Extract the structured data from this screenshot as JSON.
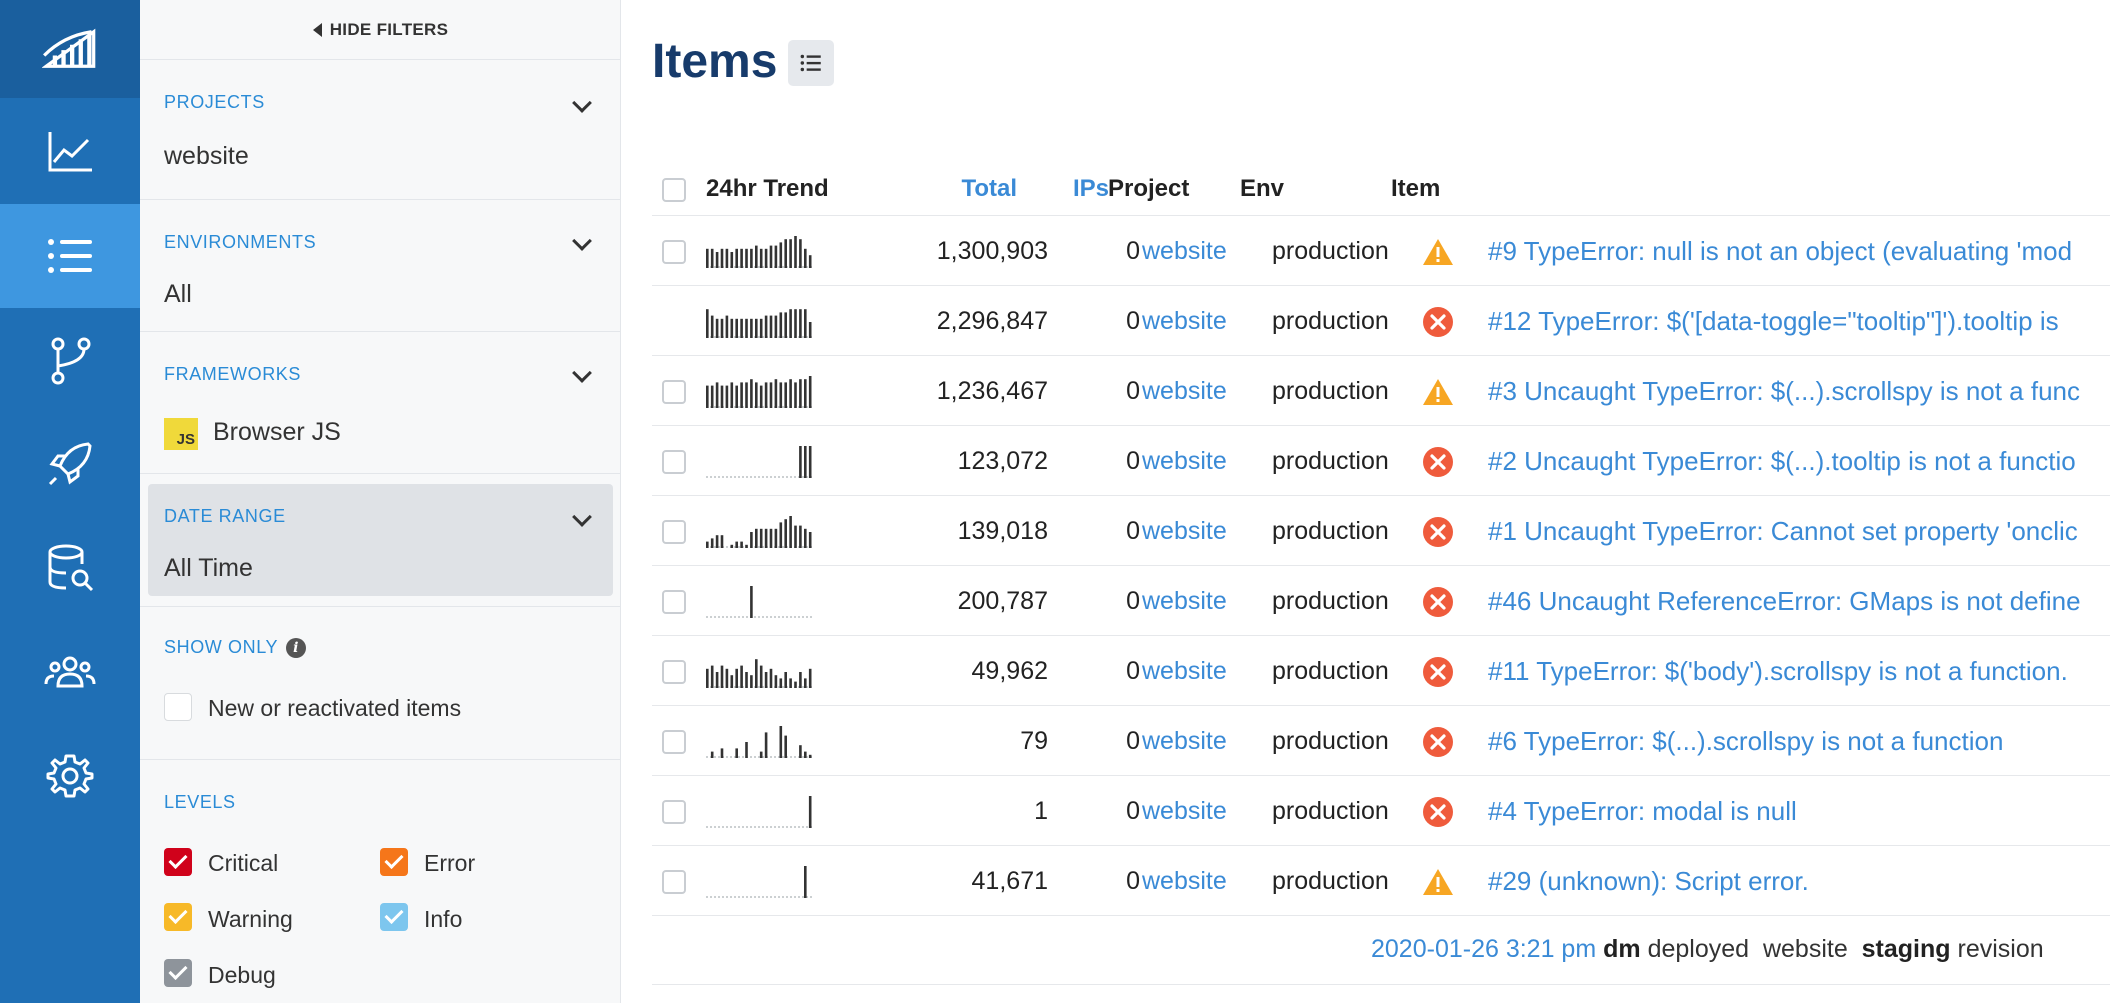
{
  "filters": {
    "hide_label": "HIDE FILTERS",
    "projects": {
      "label": "PROJECTS",
      "value": "website"
    },
    "environments": {
      "label": "ENVIRONMENTS",
      "value": "All"
    },
    "frameworks": {
      "label": "FRAMEWORKS",
      "badge": "JS",
      "value": "Browser JS"
    },
    "date_range": {
      "label": "DATE RANGE",
      "value": "All Time"
    },
    "show_only": {
      "label": "SHOW ONLY",
      "info": "i",
      "option": "New or reactivated items"
    },
    "levels": {
      "label": "LEVELS",
      "items": [
        {
          "label": "Critical",
          "color": "#d0021b"
        },
        {
          "label": "Error",
          "color": "#f5761a"
        },
        {
          "label": "Warning",
          "color": "#f7b928"
        },
        {
          "label": "Info",
          "color": "#7dc6ee"
        },
        {
          "label": "Debug",
          "color": "#8e949b"
        }
      ]
    }
  },
  "main": {
    "title": "Items",
    "columns": {
      "trend": "24hr Trend",
      "total": "Total",
      "ips": "IPs",
      "project": "Project",
      "env": "Env",
      "item": "Item"
    },
    "rows": [
      {
        "total": "1,300,903",
        "ips": "0",
        "project": "website",
        "env": "production",
        "level": "warning",
        "item": "#9 TypeError: null is not an object (evaluating 'mod",
        "trend": [
          6,
          6,
          5,
          6,
          6,
          5,
          6,
          6,
          6,
          6,
          7,
          6,
          6,
          7,
          7,
          8,
          9,
          9,
          10,
          9,
          6,
          4
        ]
      },
      {
        "total": "2,296,847",
        "ips": "0",
        "project": "website",
        "env": "production",
        "level": "error",
        "item": "#12 TypeError: $('[data-toggle=\"tooltip\"]').tooltip is",
        "trend": [
          9,
          7,
          6,
          6,
          7,
          6,
          6,
          6,
          6,
          6,
          6,
          6,
          7,
          7,
          7,
          8,
          8,
          9,
          9,
          9,
          9,
          5
        ]
      },
      {
        "total": "1,236,467",
        "ips": "0",
        "project": "website",
        "env": "production",
        "level": "warning",
        "item": "#3 Uncaught TypeError: $(...).scrollspy is not a func",
        "trend": [
          7,
          7,
          8,
          7,
          7,
          8,
          7,
          8,
          8,
          9,
          8,
          7,
          8,
          8,
          9,
          8,
          8,
          9,
          8,
          9,
          9,
          10
        ]
      },
      {
        "total": "123,072",
        "ips": "0",
        "project": "website",
        "env": "production",
        "level": "error",
        "item": "#2 Uncaught TypeError: $(...).tooltip is not a functio",
        "trend": [
          0,
          0,
          0,
          0,
          0,
          0,
          0,
          0,
          0,
          0,
          0,
          0,
          0,
          0,
          0,
          0,
          0,
          0,
          0,
          10,
          10,
          10
        ]
      },
      {
        "total": "139,018",
        "ips": "0",
        "project": "website",
        "env": "production",
        "level": "error",
        "item": "#1 Uncaught TypeError: Cannot set property 'onclic",
        "trend": [
          2,
          3,
          4,
          4,
          0,
          1,
          2,
          2,
          1,
          5,
          6,
          6,
          6,
          6,
          6,
          8,
          9,
          10,
          7,
          7,
          6,
          5
        ]
      },
      {
        "total": "200,787",
        "ips": "0",
        "project": "website",
        "env": "production",
        "level": "error",
        "item": "#46 Uncaught ReferenceError: GMaps is not define",
        "trend": [
          0,
          0,
          0,
          0,
          0,
          0,
          0,
          0,
          0,
          10,
          0,
          0,
          0,
          0,
          0,
          0,
          0,
          0,
          0,
          0,
          0,
          0
        ]
      },
      {
        "total": "49,962",
        "ips": "0",
        "project": "website",
        "env": "production",
        "level": "error",
        "item": "#11 TypeError: $('body').scrollspy is not a function.",
        "trend": [
          6,
          7,
          5,
          7,
          6,
          4,
          6,
          7,
          5,
          4,
          9,
          7,
          5,
          6,
          4,
          3,
          5,
          3,
          2,
          5,
          3,
          6
        ]
      },
      {
        "total": "79",
        "ips": "0",
        "project": "website",
        "env": "production",
        "level": "error",
        "item": "#6 TypeError: $(...).scrollspy is not a function",
        "trend": [
          0,
          2,
          0,
          3,
          0,
          0,
          3,
          0,
          5,
          0,
          0,
          2,
          8,
          0,
          0,
          10,
          7,
          0,
          0,
          4,
          2,
          1
        ]
      },
      {
        "total": "1",
        "ips": "0",
        "project": "website",
        "env": "production",
        "level": "error",
        "item": "#4 TypeError: modal is null",
        "trend": [
          0,
          0,
          0,
          0,
          0,
          0,
          0,
          0,
          0,
          0,
          0,
          0,
          0,
          0,
          0,
          0,
          0,
          0,
          0,
          0,
          0,
          10
        ]
      },
      {
        "total": "41,671",
        "ips": "0",
        "project": "website",
        "env": "production",
        "level": "warning",
        "item": "#29 (unknown): Script error.",
        "trend": [
          0,
          0,
          0,
          0,
          0,
          0,
          0,
          0,
          0,
          0,
          0,
          0,
          0,
          0,
          0,
          0,
          0,
          0,
          0,
          0,
          10,
          0
        ]
      }
    ],
    "deploy": {
      "timestamp": "2020-01-26 3:21 pm",
      "user": "dm",
      "action": "deployed",
      "project": "website",
      "env": "staging",
      "suffix": "revision"
    }
  },
  "colors": {
    "nav": "#1f6fb5",
    "nav_active": "#3e97e0",
    "accent": "#3a8ad6",
    "warning": "#f7a623",
    "error": "#ef5b3c"
  }
}
